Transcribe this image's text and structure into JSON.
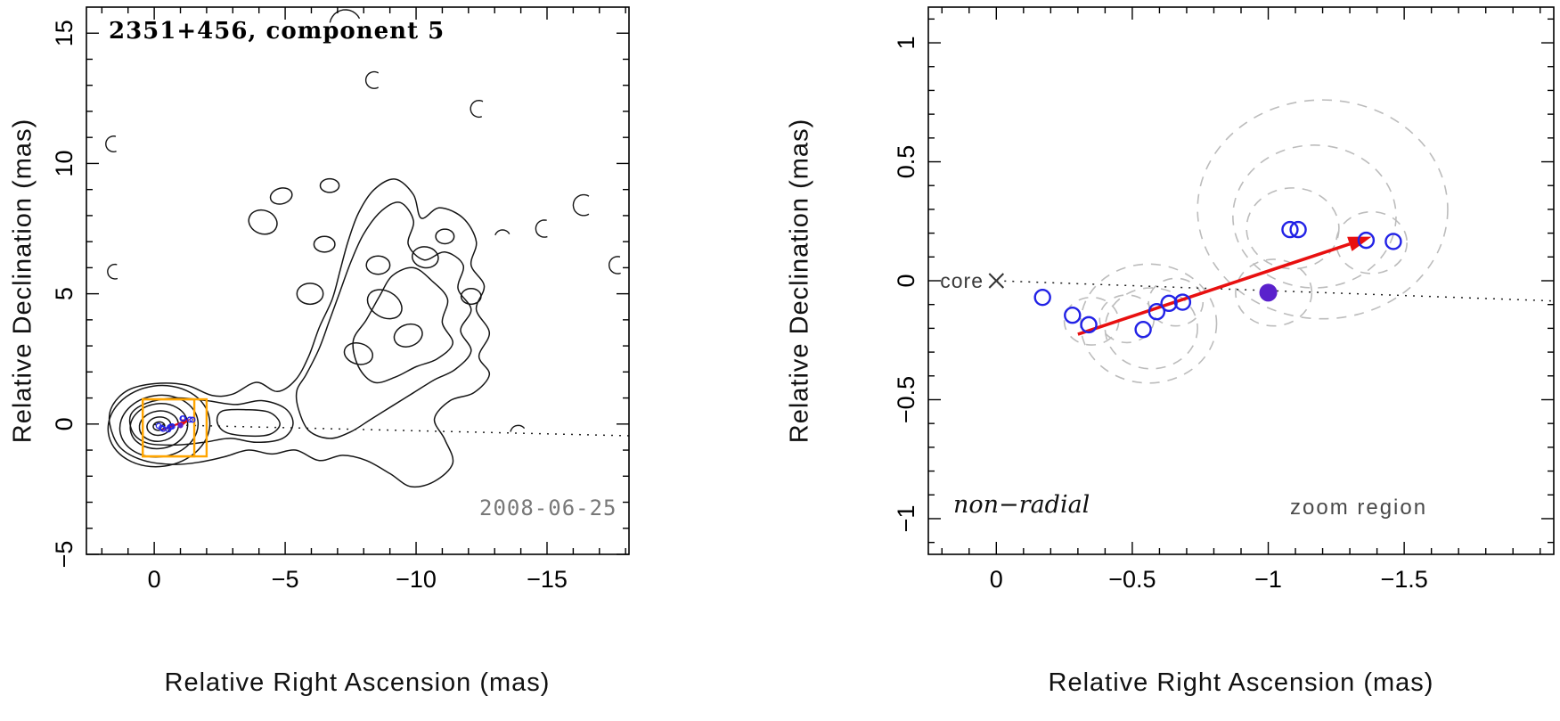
{
  "colors": {
    "contour": "#151515",
    "dotted": "#222222",
    "zoom_box": "#ffa500",
    "circle_blue": "#2222e6",
    "filled_purple": "#5a21cc",
    "arrow_red": "#e81010",
    "dashed_gray": "#bcbcbc",
    "date_gray": "#787878"
  },
  "chart_data": [
    {
      "type": "contour_map",
      "title": "2351+456, component 5",
      "date_label": "2008-06-25",
      "xlabel": "Relative Right Ascension (mas)",
      "ylabel": "Relative Declination (mas)",
      "xlim": [
        2.59,
        -18.13
      ],
      "ylim": [
        -5,
        16
      ],
      "x_major_ticks": [
        {
          "v": 0,
          "label": "0"
        },
        {
          "v": -5,
          "label": "−5"
        },
        {
          "v": -10,
          "label": "−10"
        },
        {
          "v": -15,
          "label": "−15"
        }
      ],
      "y_major_ticks": [
        {
          "v": -5,
          "label": "−5"
        },
        {
          "v": 0,
          "label": "0"
        },
        {
          "v": 5,
          "label": "5"
        },
        {
          "v": 10,
          "label": "10"
        },
        {
          "v": 15,
          "label": "15"
        }
      ],
      "x_minor_step": 1,
      "y_minor_step": 1,
      "dotted_line": [
        [
          0,
          -0.02
        ],
        [
          -18.13,
          -0.45
        ]
      ],
      "zoom_boxes": [
        {
          "x1": 0.44,
          "y1": 0.95,
          "x2": -1.53,
          "y2": -1.24
        },
        {
          "x1": 0.44,
          "y1": 0.95,
          "x2": -2.0,
          "y2": -1.24
        }
      ],
      "core_ellipses": [
        [
          -0.18,
          -0.08,
          1.95,
          1.55,
          -8
        ],
        [
          -0.18,
          -0.08,
          1.5,
          1.18,
          -8
        ],
        [
          -0.18,
          -0.08,
          1.1,
          0.86,
          -8
        ],
        [
          -0.18,
          -0.08,
          0.75,
          0.58,
          -8
        ],
        [
          -0.18,
          -0.08,
          0.46,
          0.35,
          -8
        ],
        [
          -0.18,
          -0.08,
          0.22,
          0.16,
          -8
        ]
      ],
      "contour_paths": [
        [
          [
            1.7,
            0.0
          ],
          [
            1.6,
            0.7
          ],
          [
            1.0,
            1.3
          ],
          [
            0.0,
            1.55
          ],
          [
            -1.2,
            1.5
          ],
          [
            -2.2,
            1.1
          ],
          [
            -3.0,
            1.15
          ],
          [
            -3.9,
            1.6
          ],
          [
            -4.7,
            1.25
          ],
          [
            -5.4,
            1.7
          ],
          [
            -5.9,
            2.6
          ],
          [
            -6.3,
            3.7
          ],
          [
            -6.8,
            4.8
          ],
          [
            -7.1,
            5.9
          ],
          [
            -7.4,
            7.0
          ],
          [
            -7.8,
            8.1
          ],
          [
            -8.4,
            9.0
          ],
          [
            -9.2,
            9.4
          ],
          [
            -9.9,
            8.8
          ],
          [
            -10.2,
            7.9
          ],
          [
            -10.9,
            8.3
          ],
          [
            -11.8,
            7.9
          ],
          [
            -12.3,
            7.0
          ],
          [
            -12.1,
            6.1
          ],
          [
            -12.6,
            5.3
          ],
          [
            -12.3,
            4.4
          ],
          [
            -12.8,
            3.5
          ],
          [
            -12.4,
            2.6
          ],
          [
            -12.8,
            1.9
          ],
          [
            -12.2,
            1.2
          ],
          [
            -11.3,
            0.9
          ],
          [
            -10.7,
            0.2
          ],
          [
            -11.1,
            -0.6
          ],
          [
            -11.4,
            -1.5
          ],
          [
            -10.7,
            -2.2
          ],
          [
            -9.8,
            -2.4
          ],
          [
            -9.0,
            -1.9
          ],
          [
            -8.1,
            -1.4
          ],
          [
            -7.2,
            -1.2
          ],
          [
            -6.3,
            -1.4
          ],
          [
            -5.4,
            -1.0
          ],
          [
            -4.5,
            -1.15
          ],
          [
            -3.6,
            -1.0
          ],
          [
            -2.7,
            -1.25
          ],
          [
            -1.8,
            -1.45
          ],
          [
            -0.8,
            -1.55
          ],
          [
            0.4,
            -1.4
          ],
          [
            1.3,
            -0.9
          ]
        ],
        [
          [
            -5.8,
            1.9
          ],
          [
            -6.3,
            2.9
          ],
          [
            -6.7,
            4.0
          ],
          [
            -7.1,
            5.1
          ],
          [
            -7.5,
            6.2
          ],
          [
            -8.0,
            7.3
          ],
          [
            -8.7,
            8.2
          ],
          [
            -9.4,
            8.5
          ],
          [
            -9.9,
            7.8
          ],
          [
            -9.7,
            6.9
          ],
          [
            -10.3,
            6.3
          ],
          [
            -11.1,
            6.6
          ],
          [
            -11.8,
            6.1
          ],
          [
            -11.6,
            5.2
          ],
          [
            -12.1,
            4.4
          ],
          [
            -11.7,
            3.6
          ],
          [
            -12.1,
            2.8
          ],
          [
            -11.5,
            2.1
          ],
          [
            -10.7,
            1.7
          ],
          [
            -9.9,
            1.2
          ],
          [
            -9.1,
            0.7
          ],
          [
            -8.3,
            0.2
          ],
          [
            -7.5,
            -0.3
          ],
          [
            -6.7,
            -0.55
          ],
          [
            -5.9,
            -0.25
          ],
          [
            -5.5,
            0.6
          ],
          [
            -5.45,
            1.3
          ]
        ],
        [
          [
            -7.6,
            3.2
          ],
          [
            -8.1,
            4.0
          ],
          [
            -8.6,
            4.9
          ],
          [
            -9.1,
            5.7
          ],
          [
            -9.9,
            6.0
          ],
          [
            -10.6,
            5.5
          ],
          [
            -11.2,
            4.8
          ],
          [
            -11.0,
            3.9
          ],
          [
            -11.4,
            3.1
          ],
          [
            -10.8,
            2.5
          ],
          [
            -10.0,
            2.2
          ],
          [
            -9.2,
            1.8
          ],
          [
            -8.4,
            1.6
          ],
          [
            -7.8,
            2.2
          ]
        ],
        [
          [
            0.9,
            0.35
          ],
          [
            0.3,
            0.8
          ],
          [
            -0.8,
            1.0
          ],
          [
            -2.0,
            0.9
          ],
          [
            -3.1,
            0.75
          ],
          [
            -4.1,
            0.9
          ],
          [
            -5.0,
            0.6
          ],
          [
            -5.3,
            0.0
          ],
          [
            -4.9,
            -0.55
          ],
          [
            -3.9,
            -0.7
          ],
          [
            -2.9,
            -0.55
          ],
          [
            -1.9,
            -0.7
          ],
          [
            -0.9,
            -0.8
          ],
          [
            0.2,
            -0.75
          ],
          [
            0.8,
            -0.35
          ]
        ],
        [
          [
            -2.6,
            0.5
          ],
          [
            -3.5,
            0.55
          ],
          [
            -4.4,
            0.45
          ],
          [
            -4.8,
            0.0
          ],
          [
            -4.4,
            -0.4
          ],
          [
            -3.5,
            -0.45
          ],
          [
            -2.7,
            -0.3
          ],
          [
            -2.4,
            0.1
          ]
        ]
      ],
      "island_ellipses": [
        [
          -4.15,
          7.75,
          0.55,
          0.45,
          20
        ],
        [
          -4.85,
          8.75,
          0.42,
          0.3,
          -15
        ],
        [
          -6.7,
          9.15,
          0.36,
          0.26,
          0
        ],
        [
          -8.8,
          4.6,
          0.7,
          0.5,
          30
        ],
        [
          -9.7,
          3.4,
          0.55,
          0.42,
          -20
        ],
        [
          -10.35,
          6.4,
          0.5,
          0.4,
          10
        ],
        [
          -8.55,
          6.1,
          0.45,
          0.35,
          0
        ],
        [
          -5.95,
          5.0,
          0.5,
          0.4,
          0
        ],
        [
          -7.8,
          2.7,
          0.55,
          0.4,
          15
        ],
        [
          -6.5,
          6.9,
          0.4,
          0.3,
          0
        ],
        [
          -11.1,
          7.2,
          0.35,
          0.28,
          0
        ],
        [
          -12.1,
          4.9,
          0.38,
          0.3,
          0
        ]
      ],
      "noise_arcs": [
        [
          1.55,
          10.75,
          0.3,
          70,
          290
        ],
        [
          1.5,
          5.85,
          0.28,
          70,
          290
        ],
        [
          -7.3,
          15.3,
          0.6,
          190,
          335
        ],
        [
          -8.4,
          13.2,
          0.32,
          60,
          300
        ],
        [
          -12.4,
          12.1,
          0.32,
          70,
          300
        ],
        [
          -16.4,
          8.4,
          0.4,
          60,
          300
        ],
        [
          -14.9,
          7.5,
          0.33,
          70,
          290
        ],
        [
          -13.3,
          7.15,
          0.3,
          200,
          340
        ],
        [
          -17.7,
          6.1,
          0.33,
          70,
          290
        ],
        [
          -13.9,
          -0.35,
          0.3,
          190,
          330
        ]
      ]
    },
    {
      "type": "scatter",
      "xlabel": "Relative Right Ascension (mas)",
      "ylabel": "Relative Declination (mas)",
      "xlim": [
        0.25,
        -2.05
      ],
      "ylim": [
        -1.15,
        1.15
      ],
      "x_major_ticks": [
        {
          "v": 0,
          "label": "0"
        },
        {
          "v": -0.5,
          "label": "−0.5"
        },
        {
          "v": -1,
          "label": "−1"
        },
        {
          "v": -1.5,
          "label": "−1.5"
        }
      ],
      "y_major_ticks": [
        {
          "v": -1,
          "label": "−1"
        },
        {
          "v": -0.5,
          "label": "−0.5"
        },
        {
          "v": 0,
          "label": "0"
        },
        {
          "v": 0.5,
          "label": "0.5"
        },
        {
          "v": 1,
          "label": "1"
        }
      ],
      "x_minor_step": 0.1,
      "y_minor_step": 0.1,
      "core": {
        "x": 0,
        "y": 0,
        "label": "core"
      },
      "annotations": {
        "bottom_left": "non−radial",
        "bottom_right": "zoom region"
      },
      "open_circles": [
        [
          -0.17,
          -0.07
        ],
        [
          -0.28,
          -0.145
        ],
        [
          -0.34,
          -0.185
        ],
        [
          -0.54,
          -0.205
        ],
        [
          -0.59,
          -0.13
        ],
        [
          -0.635,
          -0.095
        ],
        [
          -0.685,
          -0.09
        ],
        [
          -1.08,
          0.215
        ],
        [
          -1.11,
          0.215
        ],
        [
          -1.36,
          0.17
        ],
        [
          -1.46,
          0.165
        ]
      ],
      "filled_circle": {
        "x": -1.0,
        "y": -0.05
      },
      "velocity_arrow": {
        "x1": -0.3,
        "y1": -0.225,
        "x2": -1.38,
        "y2": 0.185
      },
      "dashed_ellipses": [
        [
          -0.35,
          -0.17,
          0.1
        ],
        [
          -0.48,
          -0.16,
          0.1
        ],
        [
          -0.57,
          -0.2,
          0.17
        ],
        [
          -0.56,
          -0.18,
          0.25
        ],
        [
          -0.66,
          -0.09,
          0.1
        ],
        [
          -1.09,
          0.22,
          0.17
        ],
        [
          -1.17,
          0.27,
          0.3
        ],
        [
          -1.2,
          0.3,
          0.46
        ],
        [
          -1.38,
          0.16,
          0.13
        ],
        [
          -1.02,
          -0.05,
          0.14
        ]
      ],
      "dotted_line": [
        [
          0,
          0
        ],
        [
          -2.05,
          -0.085
        ]
      ]
    }
  ]
}
